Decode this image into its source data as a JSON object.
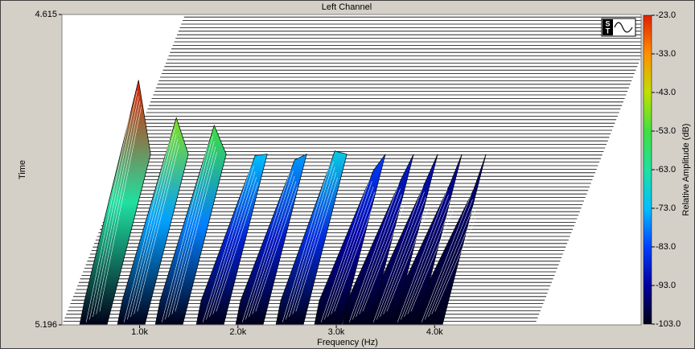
{
  "chart_data": {
    "type": "waterfall",
    "title": "Left Channel",
    "x_label": "Frequency (Hz)",
    "y_label": "Time",
    "xlim": [
      210,
      6100
    ],
    "xticks": [
      {
        "value": 1000,
        "label": "1.0k"
      },
      {
        "value": 2000,
        "label": "2.0k"
      },
      {
        "value": 3000,
        "label": "3.0k"
      },
      {
        "value": 4000,
        "label": "4.0k"
      }
    ],
    "ylim": [
      5.196,
      4.615
    ],
    "yticks": [
      4.615,
      5.196
    ],
    "peaks": {
      "frequency": [
        423,
        807,
        1192,
        1609,
        2010,
        2419,
        2811,
        3098,
        3343,
        3589,
        3834
      ],
      "amplitude": [
        -23,
        -48,
        -53,
        -73,
        -76,
        -70,
        -83,
        -88,
        -90,
        -92,
        -95
      ]
    },
    "colorbar": {
      "label": "Relative Amplitude (dB)",
      "lim": [
        -103,
        -23
      ],
      "ticks": [
        {
          "value": -23,
          "label": "-23.0"
        },
        {
          "value": -33,
          "label": "-33.0"
        },
        {
          "value": -43,
          "label": "-43.0"
        },
        {
          "value": -53,
          "label": "-53.0"
        },
        {
          "value": -63,
          "label": "-63.0"
        },
        {
          "value": -73,
          "label": "-73.0"
        },
        {
          "value": -83,
          "label": "-83.0"
        },
        {
          "value": -93,
          "label": "-93.0"
        },
        {
          "value": -103,
          "label": "-103.0"
        }
      ],
      "colors": [
        "#000018",
        "#0000a0",
        "#0040ff",
        "#00c0ff",
        "#20e0a0",
        "#40e040",
        "#c0e000",
        "#ff9000",
        "#e02000"
      ]
    }
  }
}
